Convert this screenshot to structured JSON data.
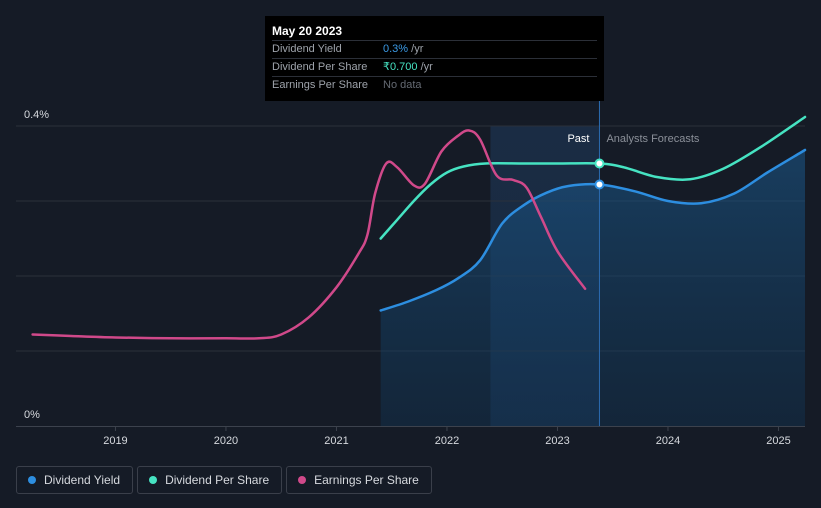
{
  "chart_data": {
    "type": "line",
    "y_labels": {
      "top": "0.4%",
      "bottom": "0%"
    },
    "ylim": [
      0,
      0.4
    ],
    "xlim": [
      2018.1,
      2025.24
    ],
    "x_ticks": [
      "2019",
      "2020",
      "2021",
      "2022",
      "2023",
      "2024",
      "2025"
    ],
    "x_tick_values": [
      2019,
      2020,
      2021,
      2022,
      2023,
      2024,
      2025
    ],
    "divider_x": 2023.38,
    "region_labels": {
      "past": "Past",
      "forecast": "Analysts Forecasts"
    },
    "series": [
      {
        "name": "Dividend Yield",
        "color": "#2d8ee0",
        "area": true,
        "points": [
          [
            2021.4,
            0.154
          ],
          [
            2021.65,
            0.166
          ],
          [
            2021.9,
            0.181
          ],
          [
            2022.1,
            0.197
          ],
          [
            2022.3,
            0.221
          ],
          [
            2022.5,
            0.27
          ],
          [
            2022.7,
            0.295
          ],
          [
            2022.9,
            0.311
          ],
          [
            2023.1,
            0.32
          ],
          [
            2023.38,
            0.322
          ],
          [
            2023.7,
            0.313
          ],
          [
            2024.0,
            0.3
          ],
          [
            2024.3,
            0.297
          ],
          [
            2024.6,
            0.31
          ],
          [
            2024.9,
            0.338
          ],
          [
            2025.24,
            0.368
          ]
        ],
        "marker_x": 2023.38
      },
      {
        "name": "Dividend Per Share",
        "color": "#46e3c2",
        "area": false,
        "points": [
          [
            2021.4,
            0.25
          ],
          [
            2021.55,
            0.275
          ],
          [
            2021.7,
            0.3
          ],
          [
            2021.85,
            0.322
          ],
          [
            2022.0,
            0.338
          ],
          [
            2022.15,
            0.346
          ],
          [
            2022.35,
            0.35
          ],
          [
            2022.7,
            0.35
          ],
          [
            2023.0,
            0.35
          ],
          [
            2023.38,
            0.35
          ],
          [
            2023.6,
            0.345
          ],
          [
            2023.9,
            0.332
          ],
          [
            2024.2,
            0.329
          ],
          [
            2024.5,
            0.343
          ],
          [
            2024.85,
            0.373
          ],
          [
            2025.24,
            0.412
          ]
        ],
        "marker_x": 2023.38
      },
      {
        "name": "Earnings Per Share",
        "color": "#d0498a",
        "area": false,
        "points": [
          [
            2018.25,
            0.122
          ],
          [
            2018.6,
            0.12
          ],
          [
            2019.0,
            0.118
          ],
          [
            2019.5,
            0.117
          ],
          [
            2020.0,
            0.117
          ],
          [
            2020.3,
            0.117
          ],
          [
            2020.5,
            0.122
          ],
          [
            2020.75,
            0.145
          ],
          [
            2021.0,
            0.185
          ],
          [
            2021.2,
            0.23
          ],
          [
            2021.28,
            0.255
          ],
          [
            2021.35,
            0.31
          ],
          [
            2021.45,
            0.35
          ],
          [
            2021.55,
            0.345
          ],
          [
            2021.7,
            0.321
          ],
          [
            2021.8,
            0.323
          ],
          [
            2021.95,
            0.366
          ],
          [
            2022.1,
            0.387
          ],
          [
            2022.2,
            0.394
          ],
          [
            2022.3,
            0.382
          ],
          [
            2022.45,
            0.334
          ],
          [
            2022.6,
            0.328
          ],
          [
            2022.72,
            0.318
          ],
          [
            2022.85,
            0.279
          ],
          [
            2023.0,
            0.233
          ],
          [
            2023.25,
            0.183
          ]
        ]
      }
    ]
  },
  "tooltip": {
    "date": "May 20 2023",
    "rows": [
      {
        "label": "Dividend Yield",
        "value": "0.3%",
        "unit": " /yr"
      },
      {
        "label": "Dividend Per Share",
        "value": "₹0.700",
        "unit": " /yr"
      },
      {
        "label": "Earnings Per Share",
        "value": "No data"
      }
    ]
  },
  "legend": [
    {
      "label": "Dividend Yield",
      "color": "#2d8ee0"
    },
    {
      "label": "Dividend Per Share",
      "color": "#46e3c2"
    },
    {
      "label": "Earnings Per Share",
      "color": "#d0498a"
    }
  ]
}
